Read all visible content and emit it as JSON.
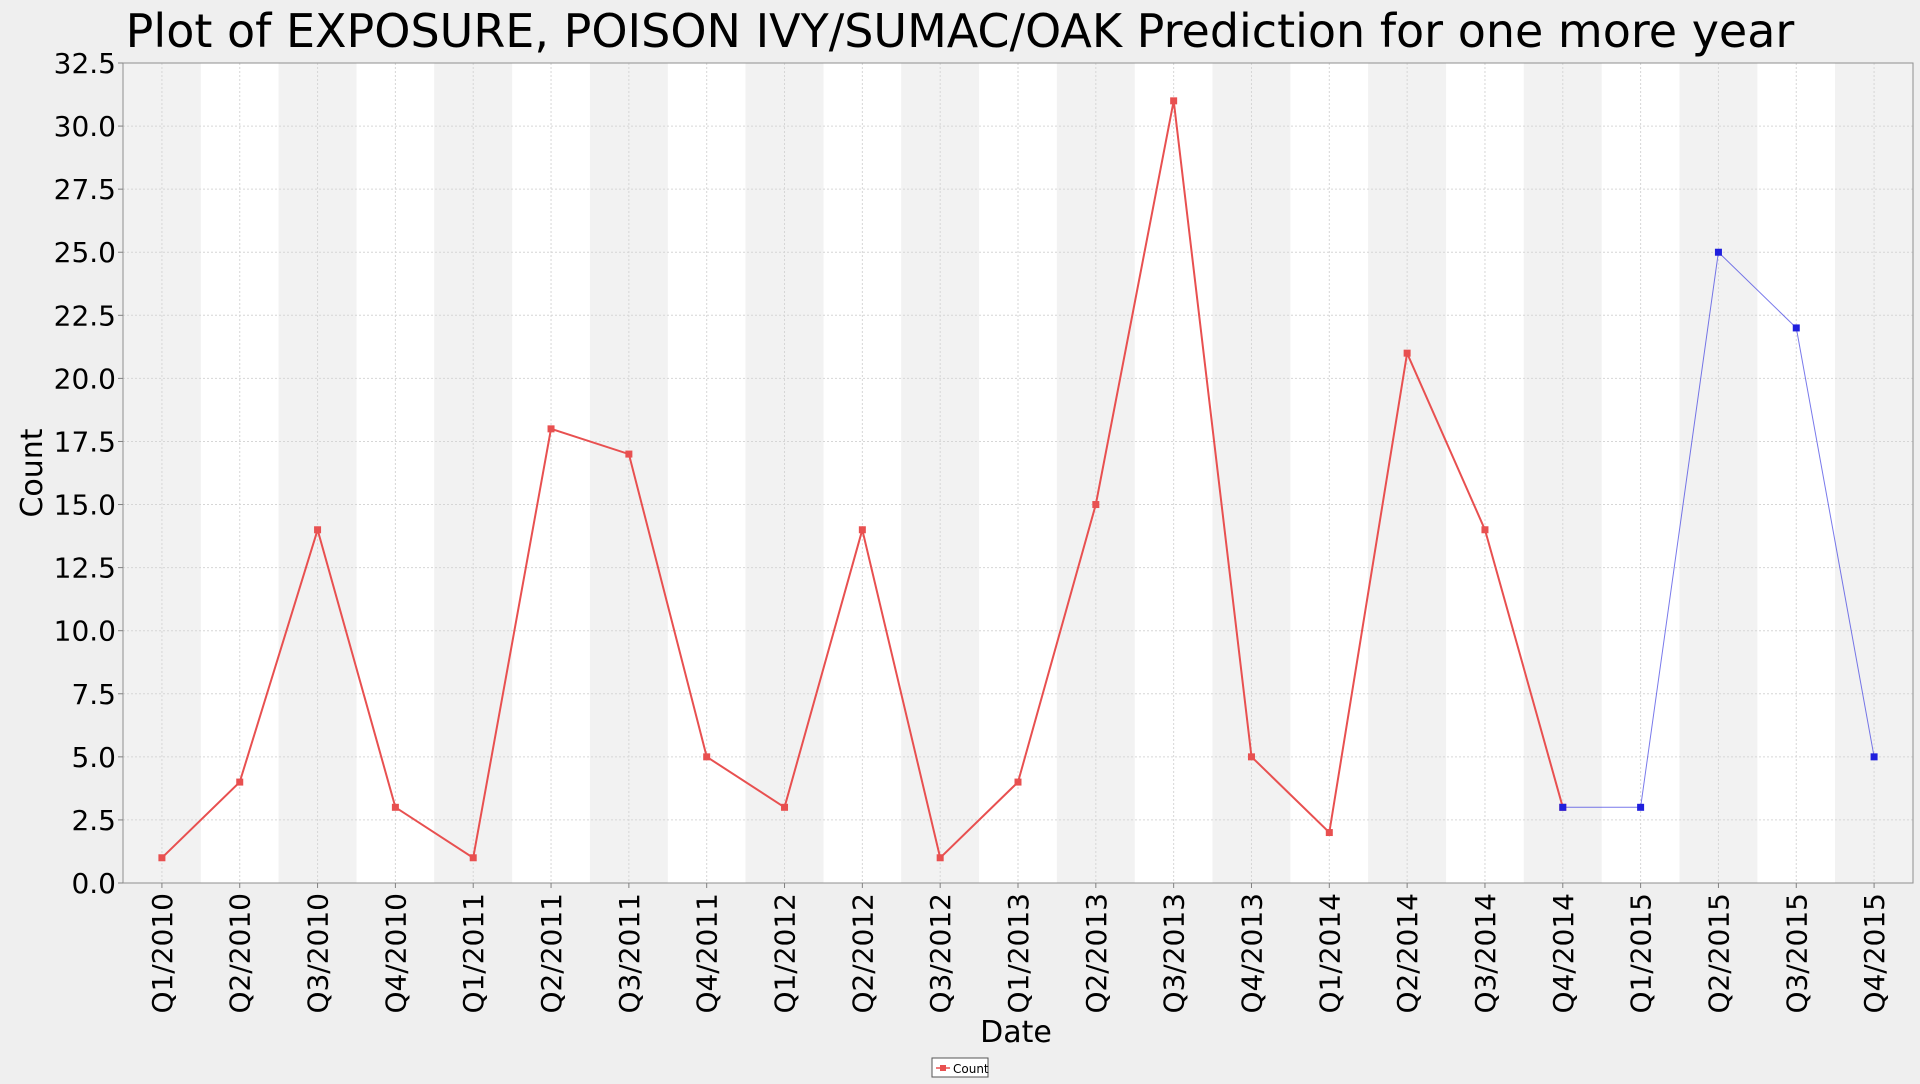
{
  "chart_data": {
    "type": "line",
    "title": "Plot of EXPOSURE, POISON IVY/SUMAC/OAK Prediction for one more year",
    "xlabel": "Date",
    "ylabel": "Count",
    "ylim": [
      0,
      32.5
    ],
    "yticks": [
      "0.0",
      "2.5",
      "5.0",
      "7.5",
      "10.0",
      "12.5",
      "15.0",
      "17.5",
      "20.0",
      "22.5",
      "25.0",
      "27.5",
      "30.0",
      "32.5"
    ],
    "categories": [
      "Q1/2010",
      "Q2/2010",
      "Q3/2010",
      "Q4/2010",
      "Q1/2011",
      "Q2/2011",
      "Q3/2011",
      "Q4/2011",
      "Q1/2012",
      "Q2/2012",
      "Q3/2012",
      "Q1/2013",
      "Q2/2013",
      "Q3/2013",
      "Q4/2013",
      "Q1/2014",
      "Q2/2014",
      "Q3/2014",
      "Q4/2014",
      "Q1/2015",
      "Q2/2015",
      "Q3/2015",
      "Q4/2015"
    ],
    "grid": true,
    "legend_position": "bottom",
    "series": [
      {
        "name": "Count",
        "color": "#e85050",
        "values": [
          1,
          4,
          14,
          3,
          1,
          18,
          17,
          5,
          3,
          14,
          1,
          4,
          15,
          31,
          5,
          2,
          21,
          14,
          3,
          null,
          null,
          null,
          null
        ]
      },
      {
        "color": "#1f1fdd",
        "values": [
          null,
          null,
          null,
          null,
          null,
          null,
          null,
          null,
          null,
          null,
          null,
          null,
          null,
          null,
          null,
          null,
          null,
          null,
          3,
          3,
          25,
          22,
          5
        ]
      }
    ]
  }
}
